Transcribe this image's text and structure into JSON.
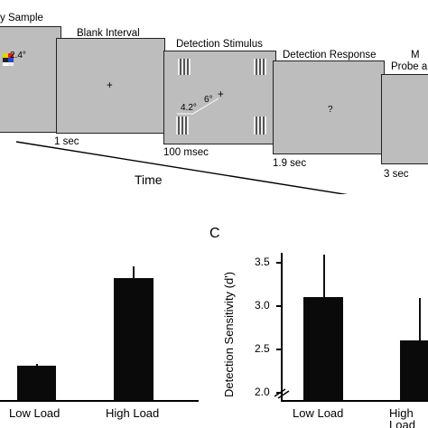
{
  "trial": {
    "frames": [
      {
        "label": "y Sample",
        "duration": ""
      },
      {
        "label": "Blank Interval",
        "duration": "1 sec"
      },
      {
        "label": "Detection Stimulus",
        "duration": "100 msec"
      },
      {
        "label": "Detection Response",
        "duration": "1.9 sec"
      },
      {
        "label": "Probe a",
        "duration": "3 sec"
      }
    ],
    "edge_letter": "M",
    "sample_angle": "2.4°",
    "fixation": "+",
    "response_prompt": "?",
    "stim_size": "4.2°",
    "stim_ecc": "6°",
    "time_label": "Time"
  },
  "panel_c_letter": "C",
  "chart_data": [
    {
      "type": "bar",
      "categories": [
        "Low Load",
        "High Load"
      ],
      "values": [
        0.28,
        0.9
      ],
      "errors": [
        0.01,
        0.1
      ],
      "ylim": [
        0,
        1.15
      ],
      "ylabel": "",
      "xlabel": ""
    },
    {
      "type": "bar",
      "categories": [
        "Low Load",
        "High Load"
      ],
      "values": [
        3.1,
        2.62
      ],
      "errors": [
        0.5,
        0.48
      ],
      "ylim": [
        2.0,
        3.7
      ],
      "yticks": [
        "2.0",
        "2.5",
        "3.0",
        "3.5"
      ],
      "ylabel": "Detection Sensitivity (d')",
      "xlabel": "",
      "axis_break": true
    }
  ]
}
